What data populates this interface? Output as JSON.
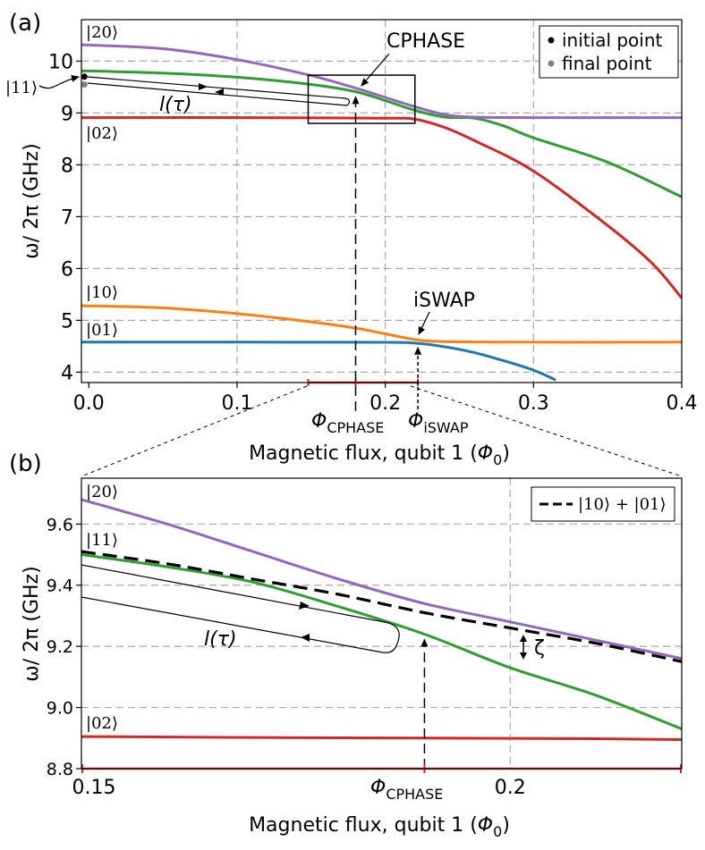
{
  "chart_data": [
    {
      "type": "line",
      "panel_label": "(a)",
      "xlabel": "Magnetic flux, qubit 1 (Φ0)",
      "ylabel": "ω/ 2π (GHz)",
      "xlim": [
        -0.005,
        0.4
      ],
      "ylim": [
        3.8,
        10.8
      ],
      "xticks": [
        "0.0",
        "0.1",
        "0.2",
        "0.3",
        "0.4"
      ],
      "yticks": [
        "4",
        "5",
        "6",
        "7",
        "8",
        "9",
        "10"
      ],
      "grid": true,
      "legend": {
        "placement": "top-right",
        "entries": [
          "initial point",
          "final point"
        ]
      },
      "series": [
        {
          "name": "|20⟩",
          "color": "#9467bd",
          "points": [
            [
              -0.005,
              10.31
            ],
            [
              0.0,
              10.31
            ],
            [
              0.05,
              10.24
            ],
            [
              0.1,
              10.03
            ],
            [
              0.15,
              9.72
            ],
            [
              0.18,
              9.48
            ],
            [
              0.2,
              9.3
            ],
            [
              0.22,
              9.12
            ],
            [
              0.24,
              8.97
            ],
            [
              0.26,
              8.92
            ],
            [
              0.3,
              8.91
            ],
            [
              0.4,
              8.91
            ]
          ]
        },
        {
          "name": "|11⟩",
          "color": "#2ca02c",
          "points": [
            [
              -0.005,
              9.81
            ],
            [
              0.0,
              9.81
            ],
            [
              0.05,
              9.77
            ],
            [
              0.1,
              9.69
            ],
            [
              0.15,
              9.55
            ],
            [
              0.18,
              9.41
            ],
            [
              0.2,
              9.24
            ],
            [
              0.22,
              9.05
            ],
            [
              0.24,
              8.92
            ],
            [
              0.26,
              8.9
            ],
            [
              0.28,
              8.75
            ],
            [
              0.3,
              8.52
            ],
            [
              0.35,
              8.05
            ],
            [
              0.4,
              7.38
            ]
          ]
        },
        {
          "name": "|02⟩",
          "color": "#d62728",
          "points": [
            [
              -0.005,
              8.91
            ],
            [
              0.0,
              8.91
            ],
            [
              0.1,
              8.91
            ],
            [
              0.2,
              8.9
            ],
            [
              0.22,
              8.88
            ],
            [
              0.24,
              8.72
            ],
            [
              0.26,
              8.47
            ],
            [
              0.3,
              7.88
            ],
            [
              0.35,
              6.83
            ],
            [
              0.38,
              6.1
            ],
            [
              0.4,
              5.43
            ]
          ]
        },
        {
          "name": "|10⟩",
          "color": "#ff7f0e",
          "points": [
            [
              -0.005,
              5.28
            ],
            [
              0.0,
              5.28
            ],
            [
              0.05,
              5.24
            ],
            [
              0.1,
              5.13
            ],
            [
              0.15,
              4.97
            ],
            [
              0.18,
              4.85
            ],
            [
              0.2,
              4.74
            ],
            [
              0.22,
              4.63
            ],
            [
              0.24,
              4.59
            ],
            [
              0.3,
              4.58
            ],
            [
              0.4,
              4.58
            ]
          ]
        },
        {
          "name": "|01⟩",
          "color": "#1f77b4",
          "points": [
            [
              -0.005,
              4.58
            ],
            [
              0.0,
              4.58
            ],
            [
              0.1,
              4.58
            ],
            [
              0.2,
              4.575
            ],
            [
              0.22,
              4.56
            ],
            [
              0.24,
              4.49
            ],
            [
              0.26,
              4.38
            ],
            [
              0.28,
              4.22
            ],
            [
              0.3,
              4.04
            ],
            [
              0.315,
              3.85
            ]
          ]
        }
      ],
      "markers": [
        {
          "name": "initial point",
          "x": -0.003,
          "y": 9.7,
          "color": "#000000"
        },
        {
          "name": "final point",
          "x": -0.003,
          "y": 9.55,
          "color": "#808080"
        }
      ],
      "annotations": {
        "cphase": "CPHASE",
        "iswap": "iSWAP",
        "path": "l(τ)",
        "phi_cphase": "Φ",
        "phi_cphase_sub": "CPHASE",
        "phi_iswap": "Φ",
        "phi_iswap_sub": "iSWAP",
        "phi_cphase_x": 0.18,
        "phi_iswap_x": 0.222
      },
      "inset_box": {
        "xlim": [
          0.148,
          0.22
        ],
        "ylim": [
          8.8,
          9.73
        ]
      }
    },
    {
      "type": "line",
      "panel_label": "(b)",
      "xlabel": "Magnetic flux, qubit 1 (Φ0)",
      "ylabel": "ω/ 2π (GHz)",
      "xlim": [
        0.15,
        0.22
      ],
      "ylim": [
        8.8,
        9.75
      ],
      "xticks": [
        "0.15",
        "0.2"
      ],
      "yticks": [
        "8.8",
        "9.0",
        "9.2",
        "9.4",
        "9.6"
      ],
      "grid": true,
      "legend": {
        "placement": "top-right",
        "entries": [
          "|10⟩ + |01⟩"
        ]
      },
      "series": [
        {
          "name": "|20⟩",
          "color": "#9467bd",
          "points": [
            [
              0.15,
              9.68
            ],
            [
              0.16,
              9.6
            ],
            [
              0.17,
              9.51
            ],
            [
              0.18,
              9.42
            ],
            [
              0.19,
              9.34
            ],
            [
              0.2,
              9.28
            ],
            [
              0.21,
              9.22
            ],
            [
              0.22,
              9.16
            ]
          ]
        },
        {
          "name": "|11⟩",
          "color": "#2ca02c",
          "points": [
            [
              0.15,
              9.5
            ],
            [
              0.16,
              9.46
            ],
            [
              0.17,
              9.41
            ],
            [
              0.18,
              9.33
            ],
            [
              0.19,
              9.24
            ],
            [
              0.2,
              9.13
            ],
            [
              0.21,
              9.04
            ],
            [
              0.22,
              8.93
            ]
          ]
        },
        {
          "name": "|10⟩ + |01⟩",
          "color": "#000000",
          "dashed": true,
          "points": [
            [
              0.15,
              9.51
            ],
            [
              0.16,
              9.47
            ],
            [
              0.17,
              9.42
            ],
            [
              0.18,
              9.37
            ],
            [
              0.19,
              9.31
            ],
            [
              0.2,
              9.26
            ],
            [
              0.21,
              9.21
            ],
            [
              0.22,
              9.15
            ]
          ]
        },
        {
          "name": "|02⟩",
          "color": "#d62728",
          "points": [
            [
              0.15,
              8.905
            ],
            [
              0.17,
              8.902
            ],
            [
              0.19,
              8.9
            ],
            [
              0.21,
              8.898
            ],
            [
              0.22,
              8.895
            ]
          ]
        }
      ],
      "annotations": {
        "zeta": "ζ",
        "path": "l(τ)",
        "phi_cphase": "Φ",
        "phi_cphase_sub": "CPHASE",
        "phi_cphase_x": 0.19
      }
    }
  ]
}
